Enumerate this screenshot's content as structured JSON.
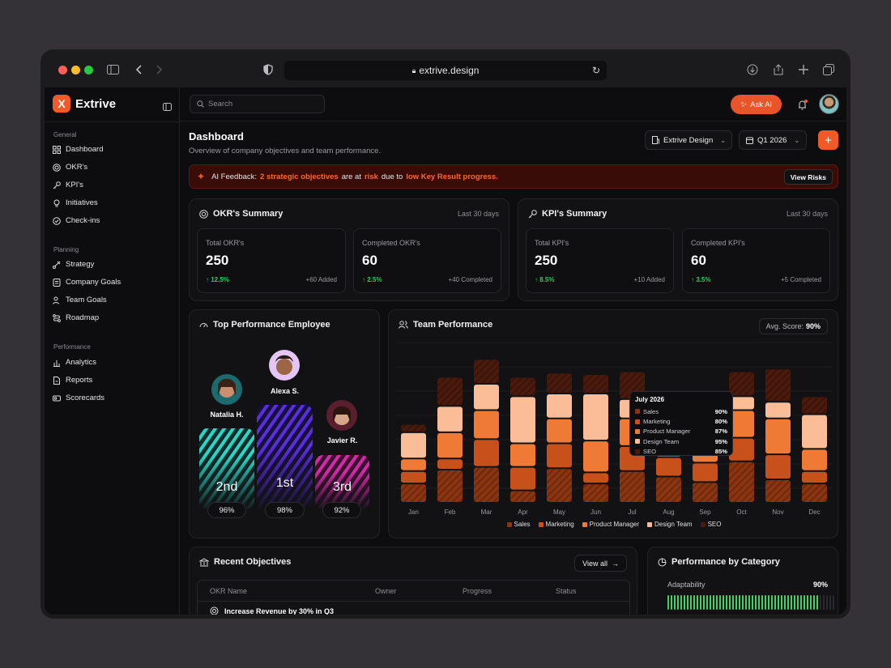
{
  "browser": {
    "url": "extrive.design"
  },
  "app": {
    "name": "Extrive",
    "logo_letter": "X",
    "accent": "#f05a28"
  },
  "sidebar": {
    "sections": [
      {
        "title": "General",
        "items": [
          {
            "label": "Dashboard",
            "icon": "grid-icon"
          },
          {
            "label": "OKR's",
            "icon": "target-icon"
          },
          {
            "label": "KPI's",
            "icon": "key-icon"
          },
          {
            "label": "Initiatives",
            "icon": "bulb-icon"
          },
          {
            "label": "Check-ins",
            "icon": "check-circle-icon"
          }
        ]
      },
      {
        "title": "Planning",
        "items": [
          {
            "label": "Strategy",
            "icon": "strategy-icon"
          },
          {
            "label": "Company Goals",
            "icon": "goals-icon"
          },
          {
            "label": "Team Goals",
            "icon": "team-icon"
          },
          {
            "label": "Roadmap",
            "icon": "roadmap-icon"
          }
        ]
      },
      {
        "title": "Performance",
        "items": [
          {
            "label": "Analytics",
            "icon": "analytics-icon"
          },
          {
            "label": "Reports",
            "icon": "reports-icon"
          },
          {
            "label": "Scorecards",
            "icon": "scorecards-icon"
          }
        ]
      }
    ]
  },
  "topbar": {
    "search_placeholder": "Search",
    "ask_ai": "Ask AI"
  },
  "header": {
    "title": "Dashboard",
    "subtitle": "Overview of company objectives and team performance.",
    "workspace": "Extrive Design",
    "period": "Q1 2026"
  },
  "alert": {
    "prefix": "AI Feedback:",
    "highlight1": "2 strategic objectives",
    "mid1": "are at",
    "highlight2": "risk",
    "mid2": "due to",
    "highlight3": "low Key Result progress.",
    "button": "View Risks"
  },
  "okr_summary": {
    "title": "OKR's Summary",
    "range": "Last 30 days",
    "stats": [
      {
        "label": "Total OKR's",
        "value": "250",
        "delta": "12.5%",
        "note": "+60 Added"
      },
      {
        "label": "Completed OKR's",
        "value": "60",
        "delta": "2.5%",
        "note": "+40 Completed"
      }
    ]
  },
  "kpi_summary": {
    "title": "KPI's Summary",
    "range": "Last 30 days",
    "stats": [
      {
        "label": "Total KPI's",
        "value": "250",
        "delta": "8.5%",
        "note": "+10 Added"
      },
      {
        "label": "Completed KPI's",
        "value": "60",
        "delta": "3.5%",
        "note": "+5 Completed"
      }
    ]
  },
  "top_employee": {
    "title": "Top Performance Employee",
    "podium": [
      {
        "name": "Natalia H.",
        "rank": "2nd",
        "score": "96%",
        "color": "#2ad6c6"
      },
      {
        "name": "Alexa S.",
        "rank": "1st",
        "score": "98%",
        "color": "#5b2ee0"
      },
      {
        "name": "Javier R.",
        "rank": "3rd",
        "score": "92%",
        "color": "#d42aa8"
      }
    ]
  },
  "team_performance": {
    "title": "Team Performance",
    "avg_label": "Avg. Score:",
    "avg_value": "90%",
    "tooltip": {
      "month": "July 2026",
      "rows": [
        {
          "label": "Sales",
          "value": "90%"
        },
        {
          "label": "Marketing",
          "value": "80%"
        },
        {
          "label": "Product Manager",
          "value": "87%"
        },
        {
          "label": "Design Team",
          "value": "95%"
        },
        {
          "label": "SEO",
          "value": "85%"
        }
      ]
    }
  },
  "chart_data": {
    "type": "bar",
    "stacked": true,
    "categories": [
      "Jan",
      "Feb",
      "Mar",
      "Apr",
      "May",
      "Jun",
      "Jul",
      "Aug",
      "Sep",
      "Oct",
      "Nov",
      "Dec"
    ],
    "series": [
      {
        "name": "Sales",
        "color": "#8a3410",
        "values": [
          14,
          24,
          26,
          9,
          25,
          14,
          23,
          19,
          15,
          30,
          17,
          14
        ]
      },
      {
        "name": "Marketing",
        "color": "#c8511b",
        "values": [
          9,
          8,
          20,
          17,
          18,
          8,
          18,
          14,
          14,
          17,
          18,
          9
        ]
      },
      {
        "name": "Product Manager",
        "color": "#ee7a35",
        "values": [
          9,
          19,
          21,
          17,
          18,
          23,
          20,
          19,
          11,
          20,
          26,
          16
        ]
      },
      {
        "name": "Design Team",
        "color": "#fbbd97",
        "values": [
          19,
          19,
          19,
          34,
          18,
          34,
          14,
          14,
          8,
          10,
          12,
          25
        ]
      },
      {
        "name": "SEO",
        "color": "#4a1a0c",
        "values": [
          6,
          21,
          18,
          14,
          15,
          14,
          20,
          7,
          17,
          18,
          24,
          13
        ]
      }
    ]
  },
  "recent_objectives": {
    "title": "Recent Objectives",
    "view_all": "View all",
    "columns": [
      "OKR Name",
      "Owner",
      "Progress",
      "Status"
    ],
    "rows": [
      {
        "name": "Increase Revenue by 30% in Q3"
      }
    ]
  },
  "category": {
    "title": "Performance by Category",
    "items": [
      {
        "label": "Adaptability",
        "value": "90%",
        "fraction": 0.9
      }
    ]
  }
}
